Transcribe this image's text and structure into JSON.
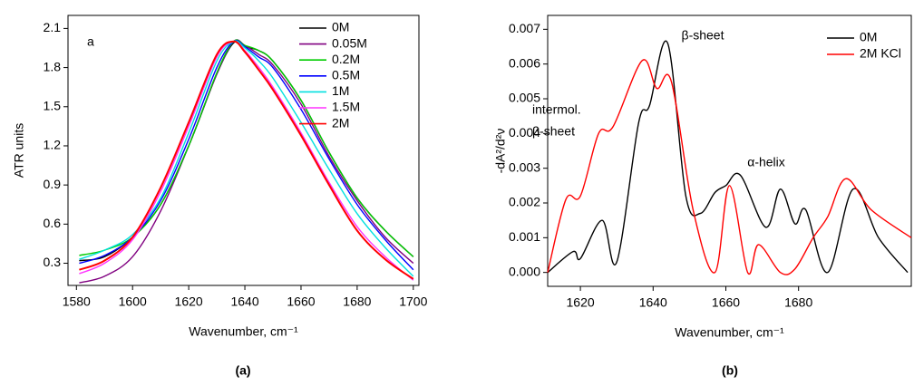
{
  "chart_data": [
    {
      "type": "line",
      "annotation": "a",
      "xlabel": "Wavenumber, cm⁻¹",
      "ylabel": "ATR units",
      "caption": "(a)",
      "xlim": [
        1577,
        1702
      ],
      "ylim": [
        0.13,
        2.2
      ],
      "xticks": [
        1580,
        1600,
        1620,
        1640,
        1660,
        1680,
        1700
      ],
      "yticks": [
        0.3,
        0.6,
        0.9,
        1.2,
        1.5,
        1.8,
        2.1
      ],
      "x": [
        1581,
        1590,
        1600,
        1610,
        1620,
        1630,
        1636,
        1640,
        1645,
        1650,
        1660,
        1670,
        1680,
        1690,
        1700
      ],
      "series": [
        {
          "name": "0M",
          "color": "#000000",
          "values": [
            0.32,
            0.35,
            0.5,
            0.75,
            1.2,
            1.75,
            1.99,
            1.96,
            1.93,
            1.85,
            1.55,
            1.15,
            0.8,
            0.55,
            0.35
          ]
        },
        {
          "name": "0.05M",
          "color": "#800080",
          "values": [
            0.15,
            0.2,
            0.35,
            0.7,
            1.2,
            1.75,
            2.0,
            1.97,
            1.9,
            1.82,
            1.52,
            1.12,
            0.78,
            0.5,
            0.3
          ]
        },
        {
          "name": "0.2M",
          "color": "#00cc00",
          "values": [
            0.36,
            0.4,
            0.5,
            0.75,
            1.2,
            1.76,
            2.0,
            1.97,
            1.93,
            1.85,
            1.55,
            1.15,
            0.8,
            0.55,
            0.35
          ]
        },
        {
          "name": "0.5M",
          "color": "#0000ff",
          "values": [
            0.3,
            0.36,
            0.5,
            0.78,
            1.25,
            1.8,
            2.0,
            1.96,
            1.88,
            1.8,
            1.48,
            1.1,
            0.75,
            0.48,
            0.25
          ]
        },
        {
          "name": "1M",
          "color": "#00e0e0",
          "values": [
            0.33,
            0.4,
            0.52,
            0.8,
            1.3,
            1.85,
            2.0,
            1.95,
            1.85,
            1.72,
            1.38,
            1.02,
            0.68,
            0.42,
            0.2
          ]
        },
        {
          "name": "1.5M",
          "color": "#ff33ff",
          "values": [
            0.22,
            0.3,
            0.48,
            0.85,
            1.35,
            1.88,
            2.0,
            1.93,
            1.8,
            1.65,
            1.3,
            0.92,
            0.58,
            0.35,
            0.17
          ]
        },
        {
          "name": "2M",
          "color": "#ff0000",
          "values": [
            0.25,
            0.32,
            0.5,
            0.88,
            1.38,
            1.9,
            2.0,
            1.92,
            1.78,
            1.63,
            1.28,
            0.9,
            0.55,
            0.33,
            0.18
          ]
        }
      ]
    },
    {
      "type": "line",
      "annotations": [
        "β-sheet",
        "intermol.",
        "β-sheet",
        "α-helix"
      ],
      "xlabel": "Wavenumber, cm⁻¹",
      "ylabel": "-dA²/d²ν",
      "caption": "(b)",
      "xlim": [
        1611,
        1711
      ],
      "ylim": [
        -0.0004,
        0.0074
      ],
      "xticks": [
        1620,
        1640,
        1660,
        1680
      ],
      "yticks": [
        {
          "value": 0,
          "label": "0.000"
        },
        {
          "value": 0.001,
          "label": "0.001"
        },
        {
          "value": 0.002,
          "label": "0.002"
        },
        {
          "value": 0.003,
          "label": "0.003"
        },
        {
          "value": 0.004,
          "label": "0.004"
        },
        {
          "value": 0.005,
          "label": "0.005"
        },
        {
          "value": 0.006,
          "label": "0.006"
        },
        {
          "value": 0.007,
          "label": "0.007"
        }
      ],
      "series": [
        {
          "name": "0M",
          "color": "#000000",
          "x": [
            1611,
            1618,
            1620,
            1626,
            1630,
            1636,
            1639,
            1644,
            1649,
            1653,
            1657,
            1660,
            1664,
            1671,
            1675,
            1679,
            1682,
            1688,
            1695,
            1702,
            1710
          ],
          "values": [
            0.0,
            0.0006,
            0.0004,
            0.0015,
            0.0003,
            0.0043,
            0.0048,
            0.0066,
            0.0022,
            0.0017,
            0.0023,
            0.0025,
            0.0028,
            0.0013,
            0.0024,
            0.0014,
            0.0018,
            0.0,
            0.0024,
            0.001,
            0.0
          ]
        },
        {
          "name": "2M KCl",
          "color": "#ff0000",
          "x": [
            1611,
            1616,
            1620,
            1625,
            1629,
            1637,
            1641,
            1645,
            1651,
            1657,
            1661,
            1666,
            1669,
            1675,
            1679,
            1684,
            1688,
            1693,
            1700,
            1711
          ],
          "values": [
            0.0,
            0.0021,
            0.0022,
            0.004,
            0.0042,
            0.0061,
            0.0053,
            0.0055,
            0.0018,
            0.0,
            0.0025,
            0.0,
            0.0008,
            0.0,
            0.0001,
            0.001,
            0.0016,
            0.0027,
            0.0018,
            0.001
          ]
        }
      ]
    }
  ]
}
